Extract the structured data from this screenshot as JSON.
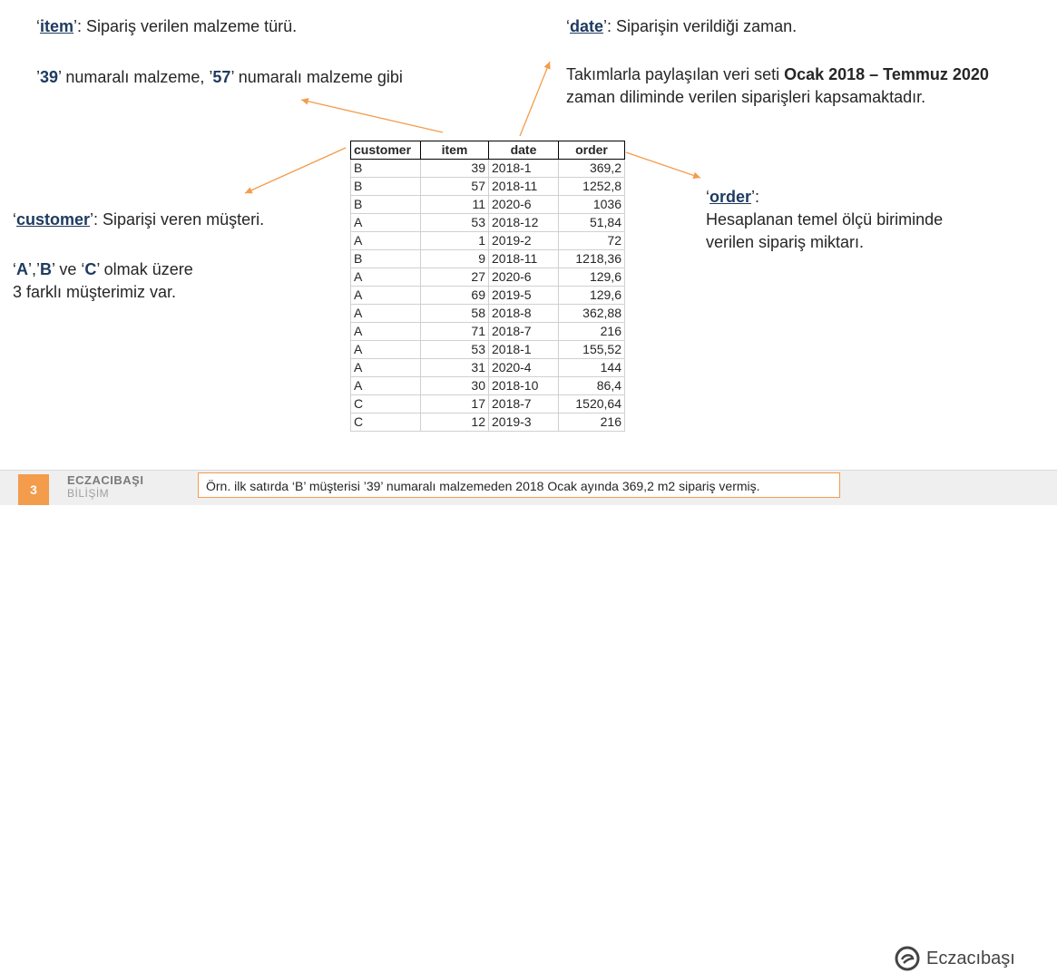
{
  "notes": {
    "item": {
      "key": "item",
      "desc": ": Sipariş verilen malzeme türü.",
      "ex_pre": "’",
      "ex_a": "39",
      "ex_mid": "’ numaralı malzeme, ’",
      "ex_b": "57",
      "ex_post": "’ numaralı malzeme gibi"
    },
    "date": {
      "key": "date",
      "desc": ": Siparişin verildiği zaman.",
      "line1_pre": "Takımlarla paylaşılan veri seti ",
      "line1_bold": "Ocak 2018 – Temmuz 2020",
      "line2": "zaman diliminde verilen siparişleri kapsamaktadır."
    },
    "customer": {
      "key": "customer",
      "desc": ": Siparişi veren müşteri.",
      "a": "A",
      "b": "B",
      "c": "C",
      "mid1": "’,’",
      "mid2": "’ ve ‘",
      "tail": "’ olmak üzere",
      "line2": "3 farklı müşterimiz var."
    },
    "order": {
      "key": "order",
      "colon": ":",
      "line1": "Hesaplanan temel ölçü biriminde",
      "line2": "verilen sipariş miktarı."
    }
  },
  "table": {
    "headers": [
      "customer",
      "item",
      "date",
      "order"
    ],
    "rows": [
      [
        "B",
        "39",
        "2018-1",
        "369,2"
      ],
      [
        "B",
        "57",
        "2018-11",
        "1252,8"
      ],
      [
        "B",
        "11",
        "2020-6",
        "1036"
      ],
      [
        "A",
        "53",
        "2018-12",
        "51,84"
      ],
      [
        "A",
        "1",
        "2019-2",
        "72"
      ],
      [
        "B",
        "9",
        "2018-11",
        "1218,36"
      ],
      [
        "A",
        "27",
        "2020-6",
        "129,6"
      ],
      [
        "A",
        "69",
        "2019-5",
        "129,6"
      ],
      [
        "A",
        "58",
        "2018-8",
        "362,88"
      ],
      [
        "A",
        "71",
        "2018-7",
        "216"
      ],
      [
        "A",
        "53",
        "2018-1",
        "155,52"
      ],
      [
        "A",
        "31",
        "2020-4",
        "144"
      ],
      [
        "A",
        "30",
        "2018-10",
        "86,4"
      ],
      [
        "C",
        "17",
        "2018-7",
        "1520,64"
      ],
      [
        "C",
        "12",
        "2019-3",
        "216"
      ]
    ]
  },
  "footer": {
    "page_number": "3",
    "brand_line1": "ECZACIBAŞI",
    "brand_line2": "BİLİŞİM",
    "caption": "Örn. ilk satırda ‘B’ müşterisi ’39’ numaralı malzemeden 2018 Ocak ayında 369,2 m2 sipariş vermiş.",
    "logo_text": "Eczacıbaşı"
  },
  "colors": {
    "accent": "#f39c4c",
    "key_text": "#1f3b60"
  }
}
